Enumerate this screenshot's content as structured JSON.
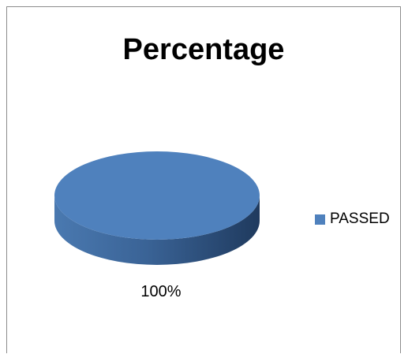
{
  "chart_data": {
    "type": "pie",
    "title": "Percentage",
    "categories": [
      "PASSED"
    ],
    "values": [
      100
    ],
    "data_labels": [
      "100%"
    ],
    "colors": [
      "#4f81bd"
    ],
    "style": "3d",
    "legend": "right",
    "xlabel": "",
    "ylabel": ""
  }
}
